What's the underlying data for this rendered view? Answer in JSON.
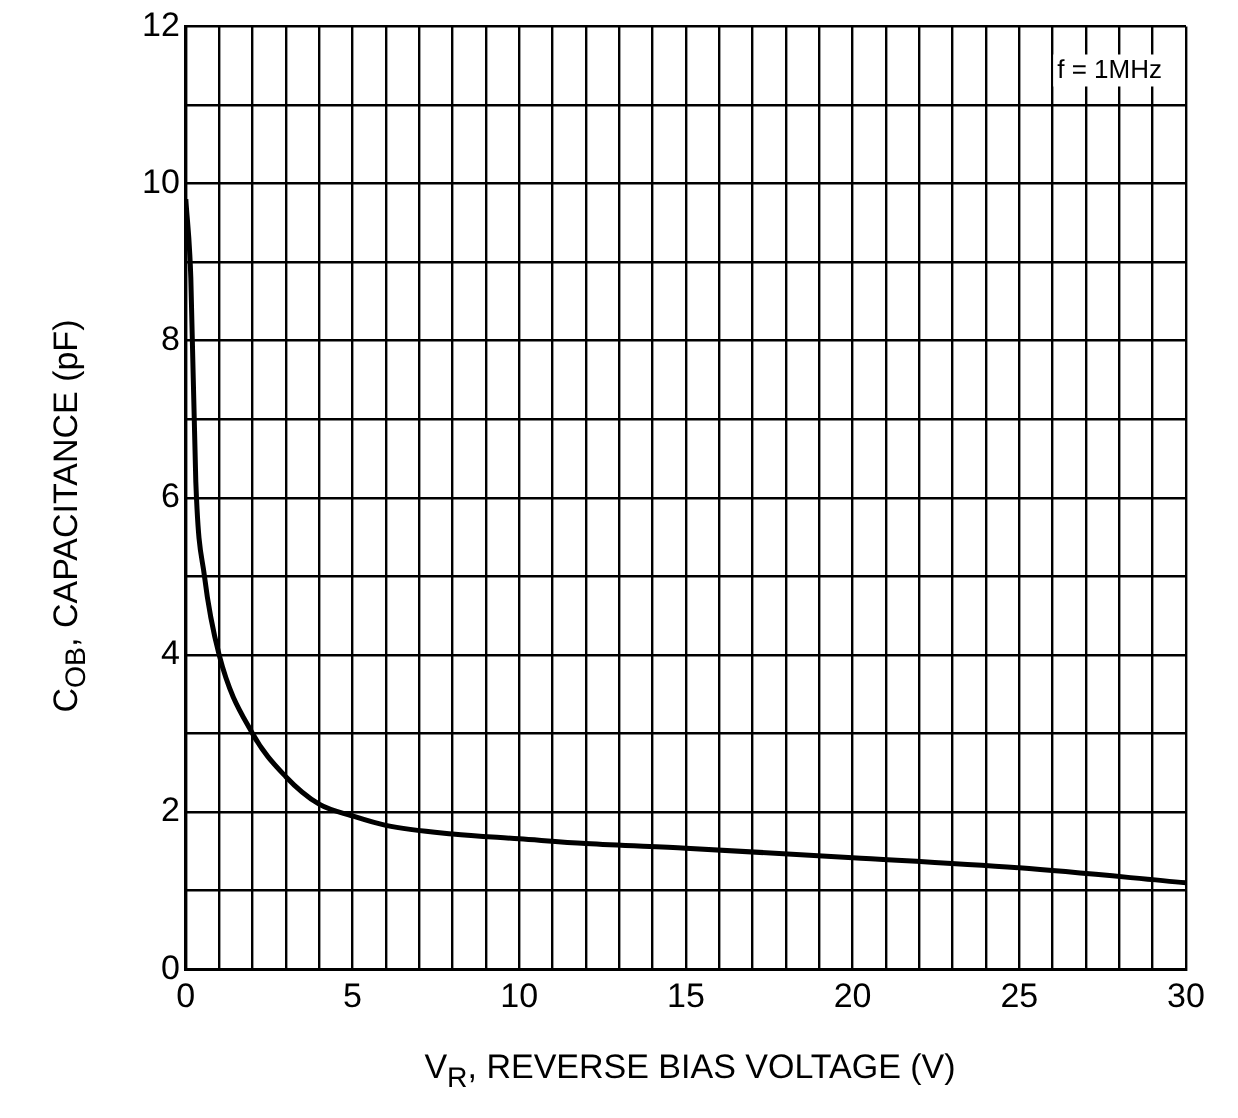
{
  "chart_data": {
    "type": "line",
    "xlabel": "V$_{R}$, REVERSE BIAS VOLTAGE (V)",
    "ylabel": "C$_{OB}$, CAPACITANCE (pF)",
    "annotations": [
      "f = 1MHz"
    ],
    "x": [
      0,
      0.15,
      0.3,
      0.56,
      1,
      2,
      3,
      4,
      5,
      6,
      8,
      10,
      12,
      15,
      20,
      25,
      30
    ],
    "series": [
      {
        "color": "#000000",
        "values": [
          9.8,
          8.8,
          6.2,
          5.0,
          4.0,
          3.0,
          2.45,
          2.1,
          1.95,
          1.83,
          1.72,
          1.66,
          1.6,
          1.54,
          1.42,
          1.29,
          1.1
        ]
      }
    ],
    "xlim": [
      0,
      30
    ],
    "ylim": [
      0,
      12
    ],
    "xticks": [
      0,
      {
        "value": 1,
        "label": null
      },
      {
        "value": 2,
        "label": null
      },
      {
        "value": 3,
        "label": null
      },
      {
        "value": 4,
        "label": null
      },
      5,
      {
        "value": 6,
        "label": null
      },
      {
        "value": 7,
        "label": null
      },
      {
        "value": 8,
        "label": null
      },
      {
        "value": 9,
        "label": null
      },
      10,
      {
        "value": 11,
        "label": null
      },
      {
        "value": 12,
        "label": null
      },
      {
        "value": 13,
        "label": null
      },
      {
        "value": 14,
        "label": null
      },
      15,
      {
        "value": 16,
        "label": null
      },
      {
        "value": 17,
        "label": null
      },
      {
        "value": 18,
        "label": null
      },
      {
        "value": 19,
        "label": null
      },
      20,
      {
        "value": 21,
        "label": null
      },
      {
        "value": 22,
        "label": null
      },
      {
        "value": 23,
        "label": null
      },
      {
        "value": 24,
        "label": null
      },
      25,
      {
        "value": 26,
        "label": null
      },
      {
        "value": 27,
        "label": null
      },
      {
        "value": 28,
        "label": null
      },
      {
        "value": 29,
        "label": null
      },
      30
    ],
    "yticks": [
      0,
      {
        "value": 1,
        "label": null
      },
      2,
      {
        "value": 3,
        "label": null
      },
      4,
      {
        "value": 5,
        "label": null
      },
      6,
      {
        "value": 7,
        "label": null
      },
      8,
      {
        "value": 9,
        "label": null
      },
      10,
      {
        "value": 11,
        "label": null
      },
      12
    ],
    "grid": true,
    "legend": false,
    "marker": "none",
    "line_style": "solid"
  }
}
